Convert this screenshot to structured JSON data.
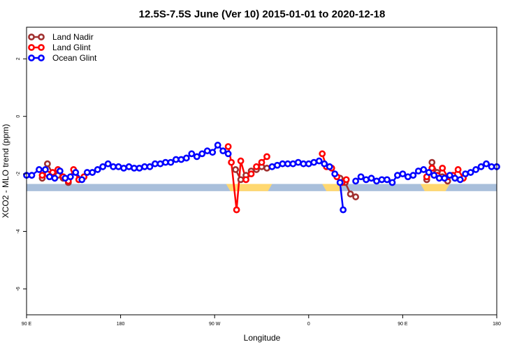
{
  "chart_data": {
    "type": "line",
    "title": "12.5S-7.5S June (Ver 10)   2015-01-01 to 2020-12-18",
    "xlabel": "Longitude",
    "ylabel": "XCO2 - MLO trend (ppm)",
    "xlim": [
      0,
      450
    ],
    "ylim": [
      -6.9,
      3.1
    ],
    "x_ticks": [
      {
        "value": 0,
        "label": "90 E"
      },
      {
        "value": 90,
        "label": "180"
      },
      {
        "value": 180,
        "label": "90 W"
      },
      {
        "value": 270,
        "label": "0"
      },
      {
        "value": 360,
        "label": "90 E"
      },
      {
        "value": 450,
        "label": "180"
      }
    ],
    "y_ticks": [
      {
        "value": 2,
        "label": "2"
      },
      {
        "value": 0,
        "label": "0"
      },
      {
        "value": -2,
        "label": "-2"
      },
      {
        "value": -4,
        "label": "-4"
      },
      {
        "value": -6,
        "label": "-6"
      }
    ],
    "grid": false,
    "legend_position": "top-left",
    "land_strip": {
      "y_top": -2.35,
      "y_bottom": -2.6,
      "ocean_color": "#a9bfdb",
      "land_color": "#ffd870"
    },
    "land_segments": [
      [
        191,
        235
      ],
      [
        283,
        303
      ],
      [
        377,
        405
      ]
    ],
    "series": [
      {
        "name": "Land Nadir",
        "color": "#a0302f",
        "segments": [
          [
            [
              15,
              -2.15
            ],
            [
              20,
              -1.65
            ],
            [
              25,
              -2.0
            ],
            [
              30,
              -2.05
            ],
            [
              35,
              -2.15
            ],
            [
              40,
              -2.3
            ]
          ],
          [
            [
              200,
              -1.85
            ],
            [
              205,
              -2.2
            ],
            [
              210,
              -2.05
            ],
            [
              215,
              -1.9
            ],
            [
              220,
              -1.85
            ],
            [
              225,
              -1.75
            ],
            [
              230,
              -1.8
            ]
          ],
          [
            [
              300,
              -2.15
            ],
            [
              305,
              -2.3
            ],
            [
              310,
              -2.7
            ],
            [
              315,
              -2.8
            ]
          ],
          [
            [
              383,
              -2.2
            ],
            [
              388,
              -1.6
            ],
            [
              393,
              -1.95
            ],
            [
              398,
              -2.1
            ],
            [
              403,
              -2.25
            ]
          ]
        ]
      },
      {
        "name": "Land Glint",
        "color": "#ff0000",
        "segments": [
          [
            [
              15,
              -2.05
            ],
            [
              20,
              -2.0
            ],
            [
              25,
              -1.95
            ],
            [
              30,
              -1.85
            ],
            [
              35,
              -2.1
            ],
            [
              40,
              -2.25
            ],
            [
              45,
              -1.85
            ],
            [
              50,
              -2.2
            ],
            [
              55,
              -2.1
            ]
          ],
          [
            [
              193,
              -1.05
            ],
            [
              196,
              -1.6
            ],
            [
              201,
              -3.25
            ],
            [
              205,
              -1.55
            ],
            [
              210,
              -2.2
            ],
            [
              215,
              -2.0
            ],
            [
              220,
              -1.75
            ],
            [
              225,
              -1.6
            ],
            [
              230,
              -1.4
            ]
          ],
          [
            [
              283,
              -1.3
            ],
            [
              287,
              -1.75
            ],
            [
              292,
              -1.8
            ],
            [
              297,
              -2.1
            ],
            [
              302,
              -2.3
            ],
            [
              306,
              -2.2
            ]
          ],
          [
            [
              383,
              -2.1
            ],
            [
              388,
              -1.8
            ],
            [
              393,
              -2.05
            ],
            [
              398,
              -1.8
            ],
            [
              403,
              -2.1
            ],
            [
              408,
              -2.05
            ],
            [
              413,
              -1.85
            ],
            [
              418,
              -2.15
            ]
          ]
        ]
      },
      {
        "name": "Ocean Glint",
        "color": "#0000ff",
        "segments": [
          [
            [
              0,
              -2.05
            ],
            [
              5,
              -2.05
            ],
            [
              12,
              -1.85
            ],
            [
              18,
              -1.85
            ],
            [
              22,
              -2.1
            ],
            [
              27,
              -2.15
            ],
            [
              32,
              -1.9
            ],
            [
              37,
              -2.15
            ],
            [
              42,
              -2.1
            ],
            [
              47,
              -1.95
            ],
            [
              53,
              -2.2
            ],
            [
              58,
              -1.95
            ],
            [
              63,
              -1.95
            ],
            [
              68,
              -1.85
            ],
            [
              73,
              -1.75
            ],
            [
              78,
              -1.65
            ],
            [
              83,
              -1.75
            ],
            [
              88,
              -1.75
            ],
            [
              93,
              -1.8
            ],
            [
              98,
              -1.75
            ],
            [
              103,
              -1.8
            ],
            [
              108,
              -1.8
            ],
            [
              113,
              -1.75
            ],
            [
              118,
              -1.75
            ],
            [
              123,
              -1.65
            ],
            [
              128,
              -1.65
            ],
            [
              133,
              -1.6
            ],
            [
              138,
              -1.6
            ],
            [
              143,
              -1.5
            ],
            [
              148,
              -1.5
            ],
            [
              153,
              -1.45
            ],
            [
              158,
              -1.3
            ],
            [
              163,
              -1.4
            ],
            [
              168,
              -1.3
            ],
            [
              173,
              -1.2
            ],
            [
              178,
              -1.25
            ],
            [
              183,
              -1.0
            ],
            [
              188,
              -1.2
            ],
            [
              193,
              -1.3
            ]
          ],
          [
            [
              235,
              -1.75
            ],
            [
              240,
              -1.7
            ],
            [
              245,
              -1.65
            ],
            [
              250,
              -1.65
            ],
            [
              255,
              -1.65
            ],
            [
              260,
              -1.6
            ],
            [
              265,
              -1.65
            ],
            [
              270,
              -1.65
            ],
            [
              275,
              -1.6
            ],
            [
              280,
              -1.55
            ],
            [
              285,
              -1.65
            ],
            [
              290,
              -1.75
            ],
            [
              295,
              -2.0
            ],
            [
              300,
              -2.3
            ],
            [
              303,
              -3.25
            ]
          ],
          [
            [
              315,
              -2.25
            ],
            [
              320,
              -2.1
            ],
            [
              325,
              -2.2
            ],
            [
              330,
              -2.15
            ],
            [
              335,
              -2.25
            ],
            [
              340,
              -2.2
            ],
            [
              345,
              -2.2
            ],
            [
              350,
              -2.3
            ],
            [
              355,
              -2.05
            ],
            [
              360,
              -2.0
            ],
            [
              365,
              -2.1
            ],
            [
              370,
              -2.05
            ],
            [
              375,
              -1.9
            ],
            [
              380,
              -1.85
            ],
            [
              385,
              -1.95
            ],
            [
              390,
              -2.05
            ],
            [
              395,
              -2.15
            ],
            [
              400,
              -2.15
            ],
            [
              405,
              -2.05
            ],
            [
              410,
              -2.15
            ],
            [
              415,
              -2.2
            ],
            [
              420,
              -2.0
            ],
            [
              425,
              -1.95
            ],
            [
              430,
              -1.85
            ],
            [
              435,
              -1.75
            ],
            [
              440,
              -1.65
            ],
            [
              445,
              -1.75
            ],
            [
              450,
              -1.75
            ]
          ]
        ]
      }
    ]
  }
}
